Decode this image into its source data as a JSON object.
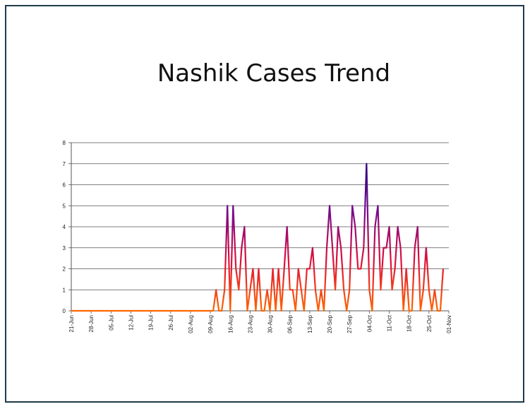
{
  "chart_data": {
    "type": "line",
    "title": "Nashik Cases Trend",
    "xlabel": "",
    "ylabel": "",
    "ylim": [
      0,
      8
    ],
    "y_ticks": [
      0,
      1,
      2,
      3,
      4,
      5,
      6,
      7,
      8
    ],
    "start_date": "2020-06-21",
    "end_date": "2020-11-01",
    "x_tick_labels": [
      "21-Jun",
      "28-Jun",
      "05-Jul",
      "12-Jul",
      "19-Jul",
      "26-Jul",
      "02-Aug",
      "09-Aug",
      "16-Aug",
      "23-Aug",
      "30-Aug",
      "06-Sep",
      "13-Sep",
      "20-Sep",
      "27-Sep",
      "04-Oct",
      "11-Oct",
      "18-Oct",
      "25-Oct",
      "01-Nov"
    ],
    "grid": "horizontal",
    "legend": "none",
    "gradient_colors": [
      "#ff6600",
      "#e0103a",
      "#7a0a8c",
      "#2a0a80"
    ],
    "series": [
      {
        "values": [
          0,
          0,
          0,
          0,
          0,
          0,
          0,
          0,
          0,
          0,
          0,
          0,
          0,
          0,
          0,
          0,
          0,
          0,
          0,
          0,
          0,
          0,
          0,
          0,
          0,
          0,
          0,
          0,
          0,
          0,
          0,
          0,
          0,
          0,
          0,
          0,
          0,
          0,
          0,
          0,
          0,
          0,
          0,
          0,
          0,
          0,
          0,
          0,
          0,
          0,
          0,
          1,
          0,
          0,
          1,
          5,
          0,
          5,
          2,
          1,
          3,
          4,
          0,
          1,
          2,
          0,
          2,
          0,
          0,
          1,
          0,
          2,
          0,
          2,
          0,
          2,
          4,
          1,
          1,
          0,
          2,
          1,
          0,
          2,
          2,
          3,
          1,
          0,
          1,
          0,
          3,
          5,
          3,
          1,
          4,
          3,
          1,
          0,
          1,
          5,
          4,
          2,
          2,
          3,
          7,
          1,
          0,
          4,
          5,
          1,
          3,
          3,
          4,
          1,
          2,
          4,
          3,
          0,
          2,
          0,
          0,
          3,
          4,
          0,
          1,
          3,
          1,
          0,
          1,
          0,
          0,
          2
        ]
      }
    ]
  }
}
